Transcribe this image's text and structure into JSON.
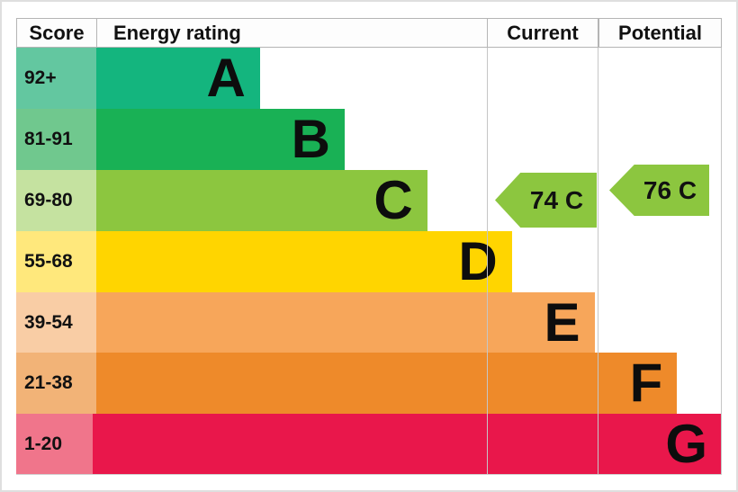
{
  "table": {
    "headers": {
      "score": "Score",
      "energy_rating": "Energy rating",
      "current": "Current",
      "potential": "Potential"
    }
  },
  "chart_data": {
    "type": "bar",
    "subtype": "epc-energy-rating",
    "title": "Energy rating",
    "columns": [
      "Score",
      "Energy rating",
      "Current",
      "Potential"
    ],
    "bands": [
      {
        "score_range": "92+",
        "letter": "A",
        "bar_color": "#14b57e",
        "score_cell_color": "#63c7a0",
        "bar_width_pct": 23.2
      },
      {
        "score_range": "81-91",
        "letter": "B",
        "bar_color": "#19b155",
        "score_cell_color": "#70c88e",
        "bar_width_pct": 35.2
      },
      {
        "score_range": "69-80",
        "letter": "C",
        "bar_color": "#8cc63f",
        "score_cell_color": "#c5e2a0",
        "bar_width_pct": 46.9
      },
      {
        "score_range": "55-68",
        "letter": "D",
        "bar_color": "#ffd500",
        "score_cell_color": "#ffe87c",
        "bar_width_pct": 58.9
      },
      {
        "score_range": "39-54",
        "letter": "E",
        "bar_color": "#f7a65a",
        "score_cell_color": "#f9cda5",
        "bar_width_pct": 70.6
      },
      {
        "score_range": "21-38",
        "letter": "F",
        "bar_color": "#ee8a2a",
        "score_cell_color": "#f2b377",
        "bar_width_pct": 82.3
      },
      {
        "score_range": "1-20",
        "letter": "G",
        "bar_color": "#e9174b",
        "score_cell_color": "#f0758b",
        "bar_width_pct": 94.0
      }
    ],
    "current": {
      "label": "74 C",
      "value": 74,
      "band": "C",
      "arrow_color": "#8cc63f"
    },
    "potential": {
      "label": "76 C",
      "value": 76,
      "band": "C",
      "arrow_color": "#8cc63f"
    },
    "layout_hints": {
      "bar_direction": "horizontal",
      "bars_grow_downward_wider": true,
      "grid": false
    }
  }
}
